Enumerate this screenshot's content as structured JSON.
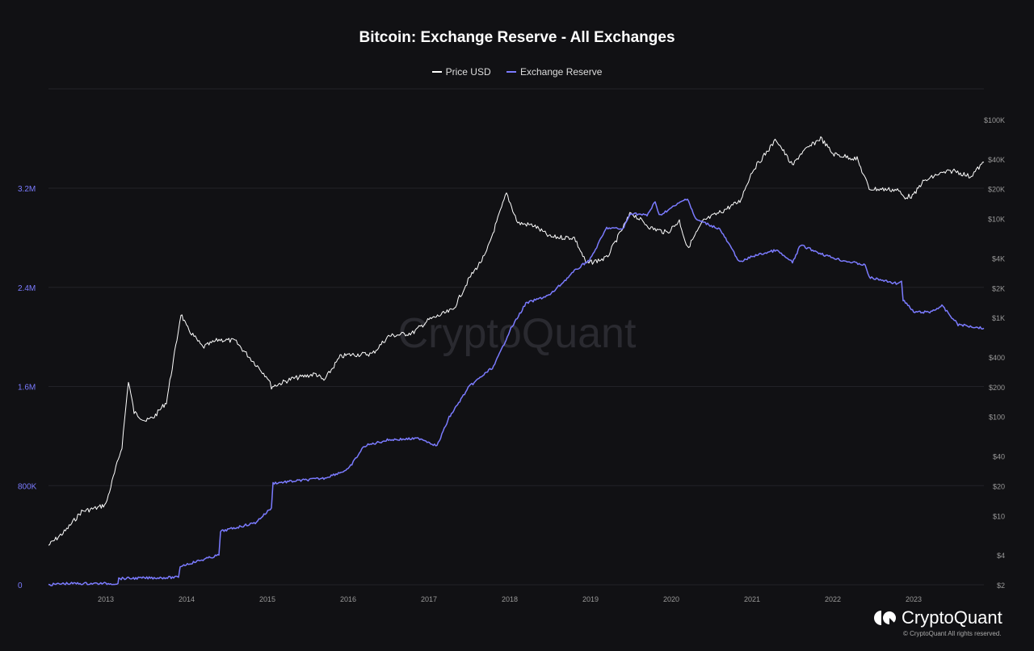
{
  "chart_data": {
    "type": "line",
    "title": "Bitcoin: Exchange Reserve - All Exchanges",
    "legend_placement": "top-center",
    "grid": "horizontal",
    "x_ticks": [
      "2013",
      "2014",
      "2015",
      "2016",
      "2017",
      "2018",
      "2019",
      "2020",
      "2021",
      "2022",
      "2023"
    ],
    "xlim": [
      2012.29,
      2023.87
    ],
    "left_axis": {
      "ticks": [
        "0",
        "800K",
        "1.6M",
        "2.4M",
        "3.2M"
      ],
      "tick_values": [
        0,
        800000,
        1600000,
        2400000,
        3200000
      ],
      "range": [
        0,
        3200000
      ],
      "color": "#7b7bff"
    },
    "right_axis": {
      "scale": "log",
      "ticks": [
        "$2",
        "$4",
        "$10",
        "$20",
        "$40",
        "$100",
        "$200",
        "$400",
        "$1K",
        "$2K",
        "$4K",
        "$10K",
        "$20K",
        "$40K",
        "$100K"
      ],
      "tick_values": [
        2,
        4,
        10,
        20,
        40,
        100,
        200,
        400,
        1000,
        2000,
        4000,
        10000,
        20000,
        40000,
        100000
      ],
      "range": [
        2,
        100000
      ]
    },
    "series": [
      {
        "name": "Price USD",
        "axis": "right",
        "color": "#ffffff",
        "points": [
          [
            2012.29,
            5
          ],
          [
            2012.5,
            7
          ],
          [
            2012.7,
            11
          ],
          [
            2012.9,
            12
          ],
          [
            2013.0,
            13
          ],
          [
            2013.2,
            50
          ],
          [
            2013.28,
            230
          ],
          [
            2013.35,
            110
          ],
          [
            2013.5,
            90
          ],
          [
            2013.6,
            100
          ],
          [
            2013.75,
            140
          ],
          [
            2013.88,
            600
          ],
          [
            2013.93,
            1100
          ],
          [
            2014.0,
            800
          ],
          [
            2014.2,
            500
          ],
          [
            2014.4,
            600
          ],
          [
            2014.6,
            580
          ],
          [
            2014.8,
            380
          ],
          [
            2015.0,
            250
          ],
          [
            2015.05,
            200
          ],
          [
            2015.3,
            240
          ],
          [
            2015.6,
            270
          ],
          [
            2015.7,
            230
          ],
          [
            2015.9,
            400
          ],
          [
            2016.0,
            420
          ],
          [
            2016.3,
            430
          ],
          [
            2016.5,
            650
          ],
          [
            2016.8,
            700
          ],
          [
            2017.0,
            950
          ],
          [
            2017.3,
            1200
          ],
          [
            2017.5,
            2500
          ],
          [
            2017.7,
            4300
          ],
          [
            2017.96,
            18000
          ],
          [
            2018.1,
            9000
          ],
          [
            2018.3,
            8500
          ],
          [
            2018.5,
            6500
          ],
          [
            2018.8,
            6400
          ],
          [
            2018.95,
            3500
          ],
          [
            2019.2,
            4000
          ],
          [
            2019.4,
            8000
          ],
          [
            2019.5,
            11500
          ],
          [
            2019.75,
            8000
          ],
          [
            2019.95,
            7200
          ],
          [
            2020.1,
            9500
          ],
          [
            2020.2,
            5000
          ],
          [
            2020.4,
            9500
          ],
          [
            2020.6,
            11500
          ],
          [
            2020.85,
            15000
          ],
          [
            2021.0,
            30000
          ],
          [
            2021.3,
            63000
          ],
          [
            2021.5,
            34000
          ],
          [
            2021.6,
            45000
          ],
          [
            2021.85,
            65000
          ],
          [
            2022.0,
            45000
          ],
          [
            2022.3,
            40000
          ],
          [
            2022.45,
            20000
          ],
          [
            2022.8,
            19500
          ],
          [
            2022.88,
            16500
          ],
          [
            2023.0,
            17000
          ],
          [
            2023.1,
            23000
          ],
          [
            2023.3,
            28000
          ],
          [
            2023.5,
            30500
          ],
          [
            2023.7,
            26500
          ],
          [
            2023.87,
            37000
          ]
        ]
      },
      {
        "name": "Exchange Reserve",
        "axis": "left",
        "color": "#7b7bff",
        "points": [
          [
            2012.29,
            0
          ],
          [
            2012.5,
            10000
          ],
          [
            2013.15,
            10000
          ],
          [
            2013.16,
            50000
          ],
          [
            2013.9,
            60000
          ],
          [
            2013.92,
            150000
          ],
          [
            2014.4,
            240000
          ],
          [
            2014.42,
            430000
          ],
          [
            2014.85,
            500000
          ],
          [
            2015.05,
            620000
          ],
          [
            2015.07,
            820000
          ],
          [
            2015.7,
            860000
          ],
          [
            2016.0,
            930000
          ],
          [
            2016.2,
            1120000
          ],
          [
            2016.5,
            1170000
          ],
          [
            2016.9,
            1180000
          ],
          [
            2017.1,
            1120000
          ],
          [
            2017.25,
            1350000
          ],
          [
            2017.5,
            1600000
          ],
          [
            2017.8,
            1760000
          ],
          [
            2017.9,
            1900000
          ],
          [
            2018.0,
            2050000
          ],
          [
            2018.2,
            2270000
          ],
          [
            2018.5,
            2340000
          ],
          [
            2018.8,
            2530000
          ],
          [
            2019.0,
            2630000
          ],
          [
            2019.2,
            2880000
          ],
          [
            2019.4,
            2870000
          ],
          [
            2019.5,
            3000000
          ],
          [
            2019.7,
            2980000
          ],
          [
            2019.8,
            3090000
          ],
          [
            2019.85,
            2980000
          ],
          [
            2020.2,
            3120000
          ],
          [
            2020.3,
            2950000
          ],
          [
            2020.6,
            2870000
          ],
          [
            2020.85,
            2600000
          ],
          [
            2021.0,
            2650000
          ],
          [
            2021.3,
            2700000
          ],
          [
            2021.5,
            2600000
          ],
          [
            2021.6,
            2740000
          ],
          [
            2021.9,
            2660000
          ],
          [
            2022.1,
            2620000
          ],
          [
            2022.4,
            2580000
          ],
          [
            2022.45,
            2480000
          ],
          [
            2022.8,
            2430000
          ],
          [
            2022.85,
            2450000
          ],
          [
            2022.87,
            2300000
          ],
          [
            2023.0,
            2200000
          ],
          [
            2023.2,
            2200000
          ],
          [
            2023.35,
            2250000
          ],
          [
            2023.55,
            2100000
          ],
          [
            2023.87,
            2070000
          ]
        ]
      }
    ]
  },
  "watermark": "CryptoQuant",
  "footer": {
    "logo_text": "CryptoQuant",
    "copyright": "© CryptoQuant All rights reserved."
  }
}
